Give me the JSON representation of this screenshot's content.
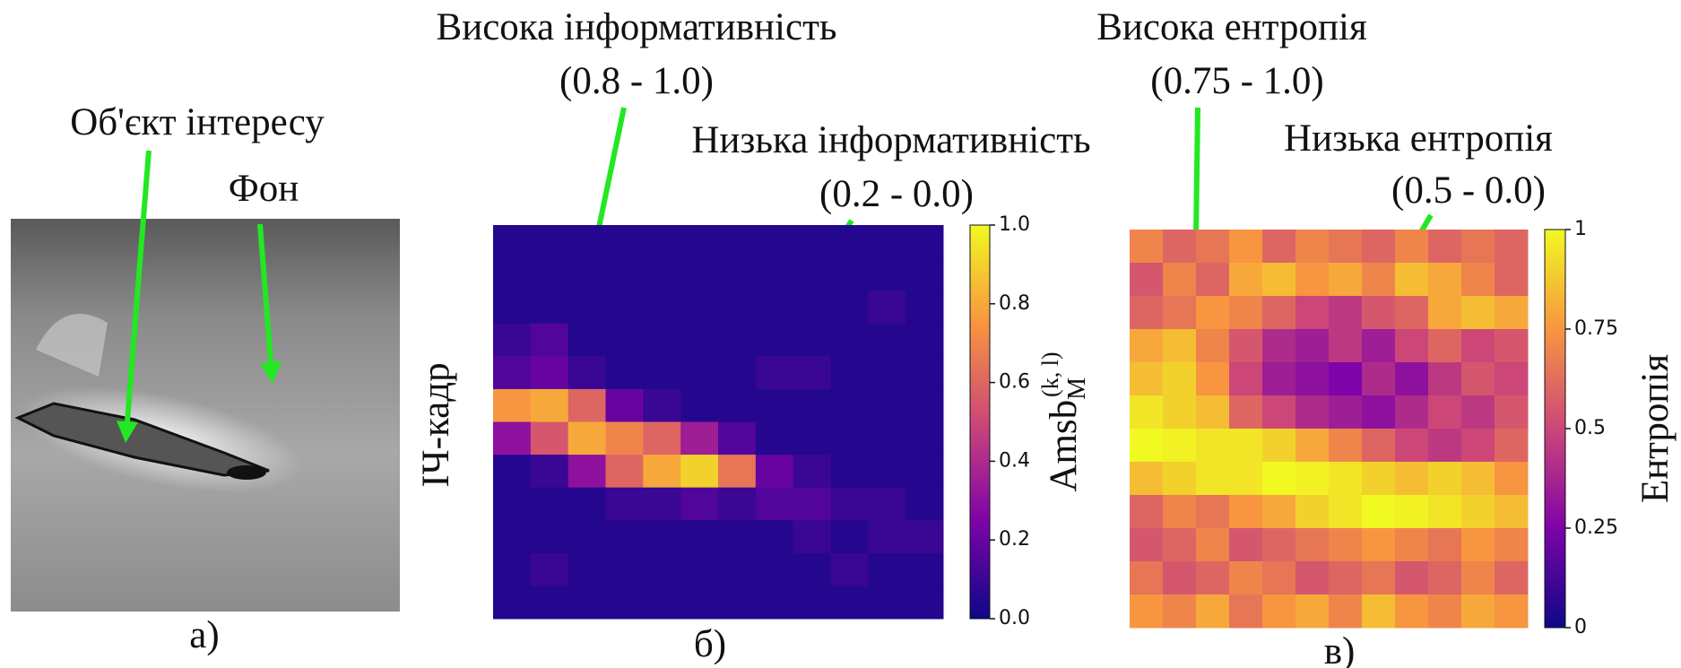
{
  "panel_a": {
    "label": "а)",
    "annotations": [
      "Об'єкт інтересу",
      "Фон"
    ]
  },
  "side_label": "ІЧ-кадр",
  "chart_data": [
    {
      "type": "heatmap",
      "panel_label": "б)",
      "annotations": [
        "Висока інформативність",
        "(0.8 - 1.0)",
        "Низька інформативність",
        "(0.2 - 0.0)"
      ],
      "values": [
        [
          0.05,
          0.05,
          0.05,
          0.05,
          0.05,
          0.05,
          0.05,
          0.05,
          0.05,
          0.05,
          0.05,
          0.05
        ],
        [
          0.05,
          0.05,
          0.05,
          0.05,
          0.05,
          0.05,
          0.05,
          0.05,
          0.05,
          0.05,
          0.05,
          0.05
        ],
        [
          0.05,
          0.05,
          0.05,
          0.05,
          0.05,
          0.05,
          0.05,
          0.05,
          0.05,
          0.05,
          0.1,
          0.05
        ],
        [
          0.1,
          0.15,
          0.05,
          0.05,
          0.05,
          0.05,
          0.05,
          0.05,
          0.05,
          0.05,
          0.05,
          0.05
        ],
        [
          0.15,
          0.2,
          0.1,
          0.05,
          0.05,
          0.05,
          0.05,
          0.1,
          0.1,
          0.05,
          0.05,
          0.05
        ],
        [
          0.75,
          0.8,
          0.6,
          0.2,
          0.1,
          0.05,
          0.05,
          0.05,
          0.05,
          0.05,
          0.05,
          0.05
        ],
        [
          0.3,
          0.55,
          0.8,
          0.7,
          0.6,
          0.35,
          0.15,
          0.05,
          0.05,
          0.05,
          0.05,
          0.05
        ],
        [
          0.05,
          0.1,
          0.3,
          0.6,
          0.8,
          0.9,
          0.65,
          0.2,
          0.1,
          0.05,
          0.05,
          0.05
        ],
        [
          0.05,
          0.05,
          0.05,
          0.1,
          0.1,
          0.15,
          0.1,
          0.15,
          0.15,
          0.1,
          0.1,
          0.05
        ],
        [
          0.05,
          0.05,
          0.05,
          0.05,
          0.05,
          0.05,
          0.05,
          0.05,
          0.1,
          0.05,
          0.1,
          0.1
        ],
        [
          0.05,
          0.1,
          0.05,
          0.05,
          0.05,
          0.05,
          0.05,
          0.05,
          0.05,
          0.1,
          0.05,
          0.05
        ],
        [
          0.05,
          0.05,
          0.05,
          0.05,
          0.05,
          0.05,
          0.05,
          0.05,
          0.05,
          0.05,
          0.05,
          0.05
        ]
      ],
      "colorbar_label": "Amsb",
      "colorbar_label_sub": "M",
      "colorbar_label_sup": "(k, l)",
      "ylim": [
        0,
        1
      ],
      "yticks": [
        {
          "value": 0,
          "label": "0.0"
        },
        0.2,
        0.4,
        0.6,
        0.8,
        {
          "value": 1,
          "label": "1.0"
        }
      ]
    },
    {
      "type": "heatmap",
      "panel_label": "в)",
      "annotations": [
        "Висока ентропія",
        "(0.75 - 1.0)",
        "Низька ентропія",
        "(0.5 - 0.0)"
      ],
      "values": [
        [
          0.7,
          0.6,
          0.65,
          0.75,
          0.6,
          0.7,
          0.65,
          0.6,
          0.7,
          0.6,
          0.65,
          0.6
        ],
        [
          0.55,
          0.7,
          0.6,
          0.8,
          0.85,
          0.75,
          0.8,
          0.7,
          0.85,
          0.8,
          0.7,
          0.6
        ],
        [
          0.6,
          0.65,
          0.75,
          0.7,
          0.6,
          0.5,
          0.45,
          0.55,
          0.6,
          0.8,
          0.85,
          0.8
        ],
        [
          0.8,
          0.85,
          0.7,
          0.55,
          0.4,
          0.35,
          0.45,
          0.35,
          0.5,
          0.6,
          0.5,
          0.55
        ],
        [
          0.85,
          0.9,
          0.75,
          0.5,
          0.35,
          0.3,
          0.25,
          0.4,
          0.3,
          0.45,
          0.55,
          0.5
        ],
        [
          0.95,
          0.9,
          0.85,
          0.6,
          0.5,
          0.4,
          0.35,
          0.3,
          0.4,
          0.5,
          0.45,
          0.55
        ],
        [
          1,
          0.98,
          0.95,
          0.95,
          0.9,
          0.8,
          0.7,
          0.6,
          0.5,
          0.45,
          0.5,
          0.6
        ],
        [
          0.85,
          0.9,
          0.95,
          0.95,
          1,
          0.98,
          0.95,
          0.9,
          0.85,
          0.9,
          0.85,
          0.75
        ],
        [
          0.6,
          0.7,
          0.65,
          0.75,
          0.8,
          0.9,
          0.95,
          1,
          0.98,
          0.95,
          0.9,
          0.85
        ],
        [
          0.55,
          0.6,
          0.7,
          0.55,
          0.6,
          0.65,
          0.7,
          0.75,
          0.7,
          0.65,
          0.75,
          0.7
        ],
        [
          0.65,
          0.55,
          0.6,
          0.7,
          0.65,
          0.55,
          0.6,
          0.65,
          0.55,
          0.6,
          0.7,
          0.6
        ],
        [
          0.75,
          0.7,
          0.8,
          0.65,
          0.75,
          0.8,
          0.7,
          0.85,
          0.75,
          0.7,
          0.8,
          0.75
        ]
      ],
      "colorbar_label": "Ентропія",
      "ylim": [
        0,
        1
      ],
      "yticks": [
        0,
        0.25,
        0.5,
        0.75,
        1
      ]
    }
  ]
}
